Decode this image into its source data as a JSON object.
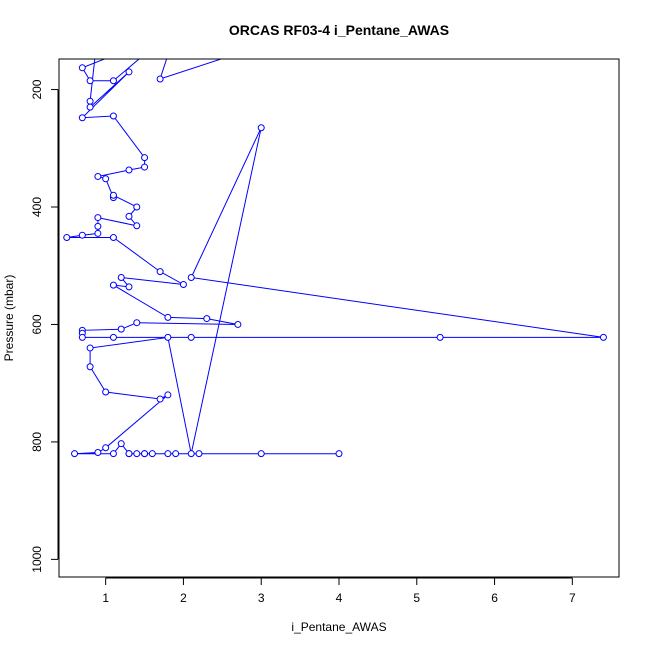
{
  "chart_data": {
    "type": "line",
    "title": "ORCAS RF03-4 i_Pentane_AWAS",
    "xlabel": "i_Pentane_AWAS",
    "ylabel": "Pressure (mbar)",
    "x_ticks": [
      1,
      2,
      3,
      4,
      5,
      6,
      7
    ],
    "y_ticks": [
      200,
      400,
      600,
      800,
      1000
    ],
    "xlim": [
      0.4,
      7.6
    ],
    "ylim": [
      1030,
      148
    ],
    "y_reversed": true,
    "markers": "open-circle",
    "color": "#0000ff",
    "series": [
      {
        "points": [
          [
            2.9,
            130
          ],
          [
            1.7,
            182
          ],
          [
            1.9,
            100
          ],
          [
            0.7,
            163
          ],
          [
            0.8,
            185
          ],
          [
            1.1,
            185
          ],
          [
            1.5,
            140
          ],
          [
            0.9,
            100
          ],
          [
            0.8,
            220
          ],
          [
            0.8,
            230
          ],
          [
            1.3,
            170
          ],
          [
            0.7,
            248
          ],
          [
            1.1,
            245
          ],
          [
            1.5,
            316
          ],
          [
            1.5,
            332
          ],
          [
            1.3,
            337
          ],
          [
            0.9,
            348
          ],
          [
            1.0,
            352
          ],
          [
            1.1,
            384
          ],
          [
            1.1,
            380
          ],
          [
            1.4,
            400
          ],
          [
            1.3,
            416
          ],
          [
            1.4,
            432
          ],
          [
            0.9,
            418
          ],
          [
            0.9,
            433
          ],
          [
            0.9,
            445
          ],
          [
            0.7,
            448
          ],
          [
            0.5,
            452
          ],
          [
            1.1,
            452
          ],
          [
            1.7,
            510
          ],
          [
            2.0,
            532
          ],
          [
            1.2,
            520
          ],
          [
            1.3,
            536
          ],
          [
            1.1,
            533
          ],
          [
            1.8,
            588
          ],
          [
            2.3,
            590
          ],
          [
            2.7,
            600
          ],
          [
            1.4,
            597
          ],
          [
            1.2,
            608
          ],
          [
            0.7,
            610
          ],
          [
            0.7,
            615
          ],
          [
            0.7,
            622
          ],
          [
            1.1,
            622
          ],
          [
            2.1,
            622
          ],
          [
            5.3,
            622
          ],
          [
            7.4,
            622
          ],
          [
            2.1,
            520
          ],
          [
            3.0,
            265
          ],
          [
            2.1,
            820
          ],
          [
            1.8,
            622
          ],
          [
            0.8,
            640
          ],
          [
            0.8,
            672
          ],
          [
            1.0,
            715
          ],
          [
            1.7,
            727
          ],
          [
            1.8,
            720
          ],
          [
            1.0,
            810
          ],
          [
            0.9,
            818
          ],
          [
            0.6,
            820
          ],
          [
            1.1,
            820
          ],
          [
            1.2,
            803
          ],
          [
            1.3,
            820
          ],
          [
            1.4,
            820
          ],
          [
            1.5,
            820
          ],
          [
            1.6,
            820
          ],
          [
            1.8,
            820
          ],
          [
            1.9,
            820
          ],
          [
            2.2,
            820
          ],
          [
            4.0,
            820
          ],
          [
            3.0,
            820
          ],
          [
            1.5,
            820
          ],
          [
            1.3,
            820
          ]
        ]
      }
    ]
  }
}
